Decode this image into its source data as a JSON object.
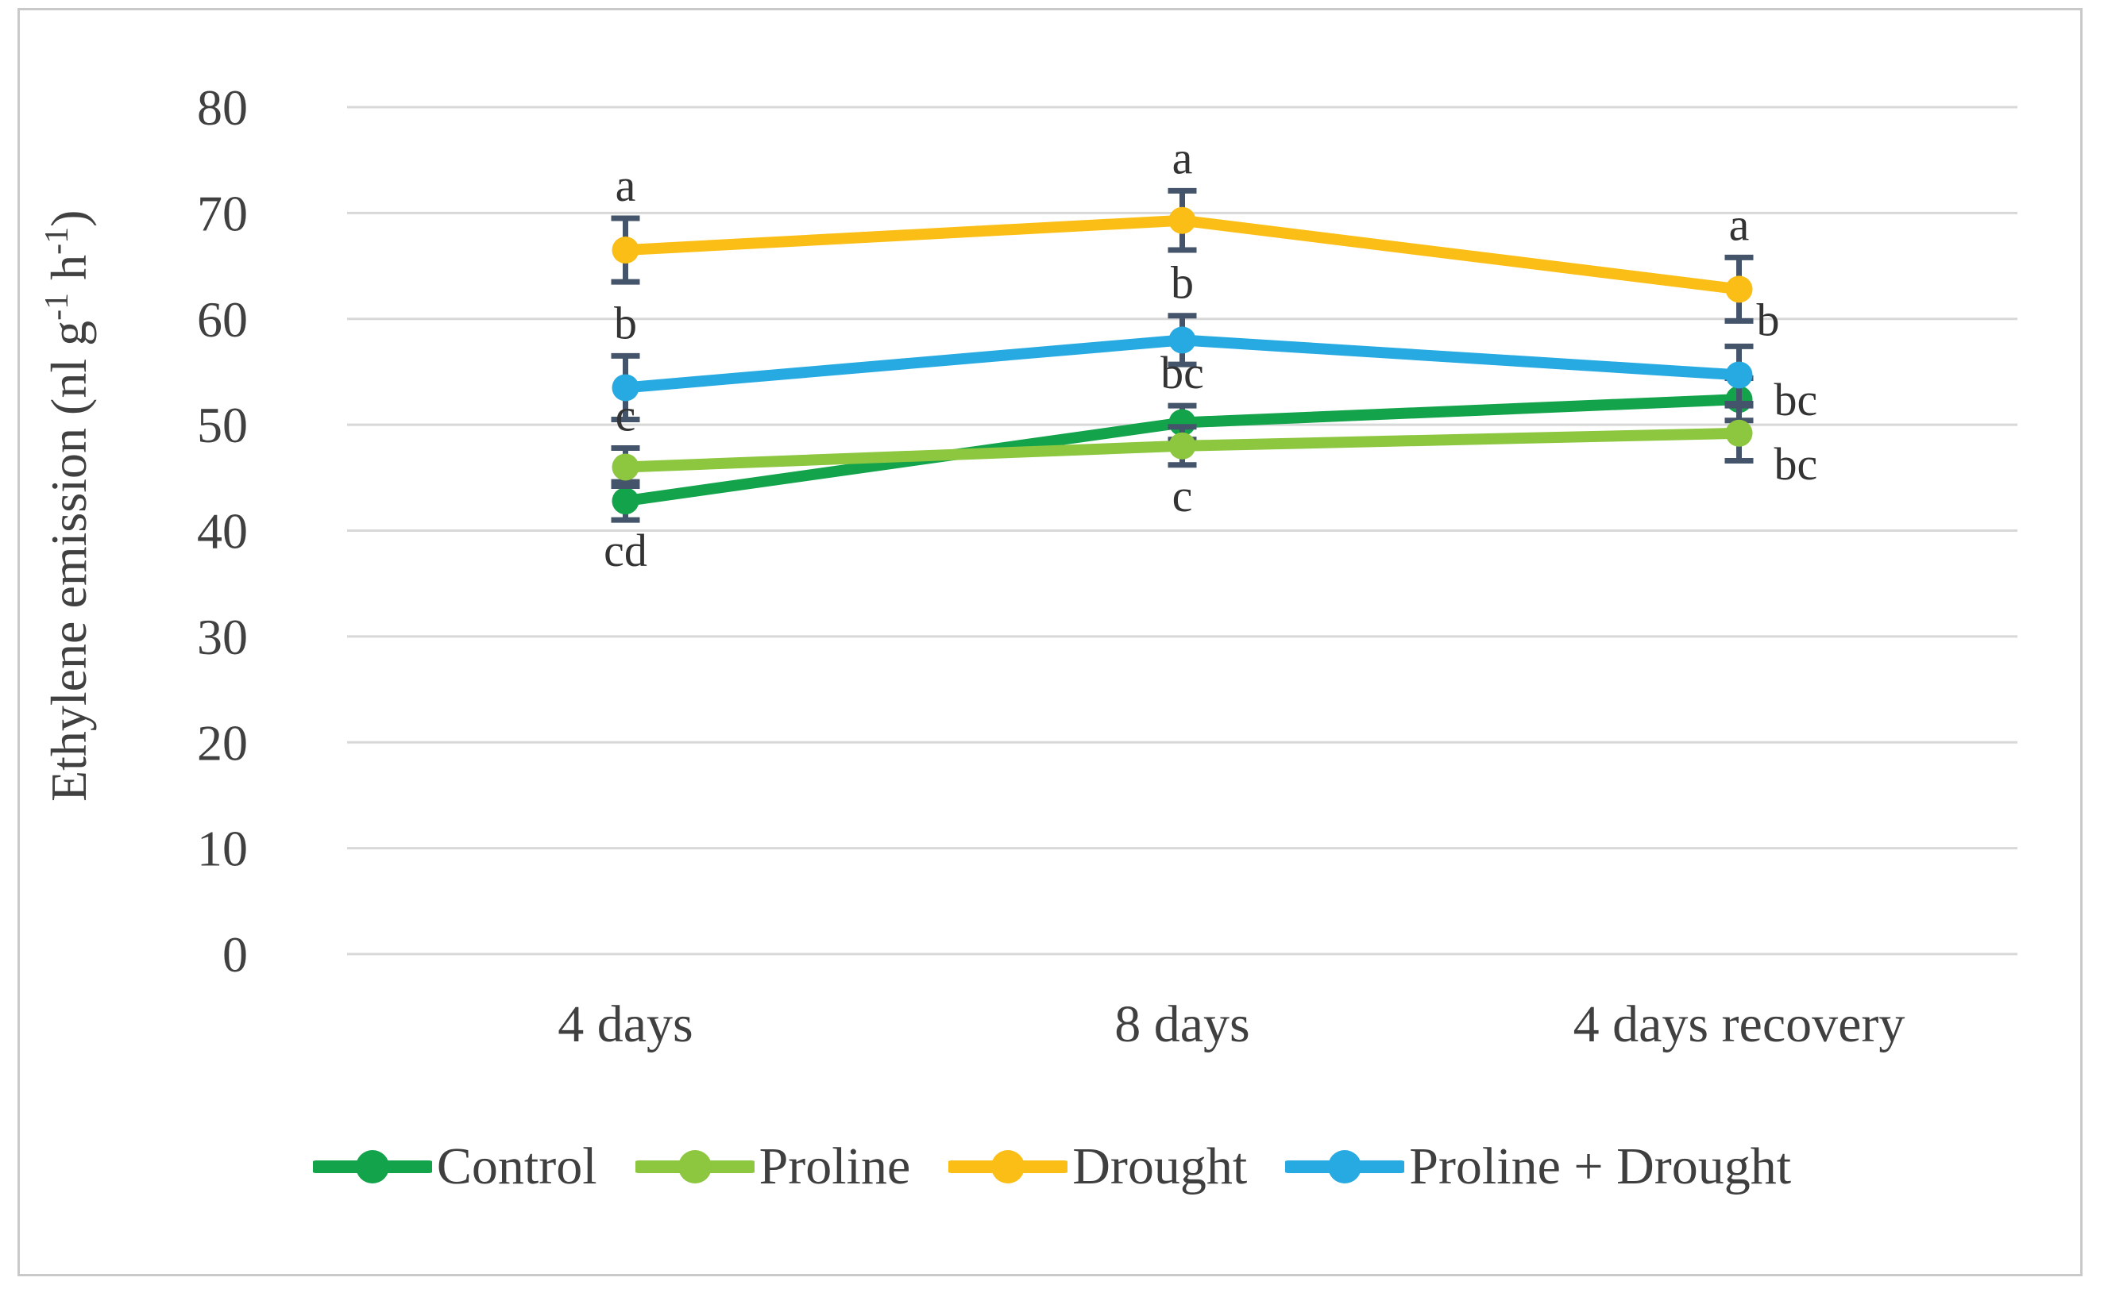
{
  "chart_data": {
    "type": "line",
    "title": "",
    "xlabel": "",
    "ylabel": "Ethylene emission (nl g-1 h-1)",
    "y_axis_title_parts": [
      {
        "t": "Ethylene emission (nl g"
      },
      {
        "t": "-1",
        "sup": true
      },
      {
        "t": " h",
        "sup": false
      },
      {
        "t": "-1",
        "sup": true
      },
      {
        "t": ")",
        "sup": false
      }
    ],
    "categories": [
      "4 days",
      "8 days",
      "4 days recovery"
    ],
    "y_tick_labels": [
      "0",
      "10",
      "20",
      "30",
      "40",
      "50",
      "60",
      "70",
      "80"
    ],
    "ylim": [
      0,
      80
    ],
    "ytick_step": 10,
    "grid": true,
    "legend_position": "bottom",
    "series": [
      {
        "name": "Control",
        "color": "#12a34b",
        "values": [
          42.8,
          50.2,
          52.4
        ],
        "errors": [
          1.8,
          1.6,
          2.0
        ],
        "letters": [
          "cd",
          "bc",
          "bc"
        ],
        "placements": [
          "below",
          "above",
          "right"
        ]
      },
      {
        "name": "Proline",
        "color": "#8dc63f",
        "values": [
          46.0,
          48.0,
          49.2
        ],
        "errors": [
          1.8,
          1.8,
          2.6
        ],
        "letters": [
          "c",
          "c",
          "bc"
        ],
        "placements": [
          "above",
          "below",
          "right-down"
        ]
      },
      {
        "name": "Drought",
        "color": "#fbbe16",
        "values": [
          66.5,
          69.3,
          62.8
        ],
        "errors": [
          3.0,
          2.8,
          3.0
        ],
        "letters": [
          "a",
          "a",
          "a"
        ],
        "placements": [
          "above",
          "above",
          "above"
        ]
      },
      {
        "name": "Proline + Drought",
        "color": "#27aae1",
        "values": [
          53.5,
          58.0,
          54.7
        ],
        "errors": [
          3.0,
          2.3,
          2.7
        ],
        "letters": [
          "b",
          "b",
          "b"
        ],
        "placements": [
          "above",
          "above",
          "above-right"
        ]
      }
    ],
    "colors": {
      "error_bar": "#44546a",
      "grid": "#d8d8d8",
      "tick_text": "#404040",
      "letter_text": "#333333",
      "frame_border": "#c8c8c8"
    }
  }
}
